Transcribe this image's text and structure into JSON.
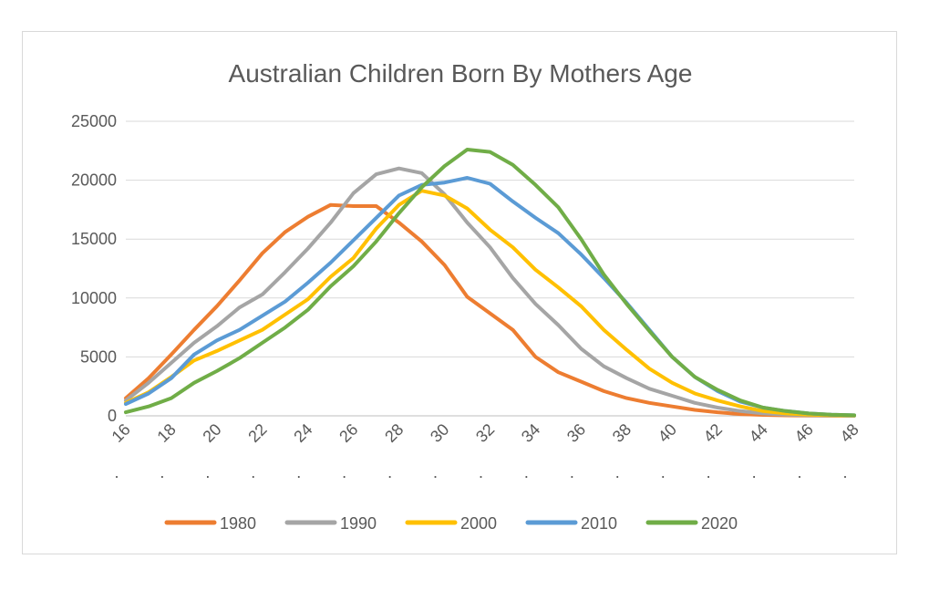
{
  "chart_data": {
    "type": "line",
    "title": "Australian Children Born By Mothers Age",
    "xlabel": "",
    "ylabel": "",
    "x": [
      16,
      17,
      18,
      19,
      20,
      21,
      22,
      23,
      24,
      25,
      26,
      27,
      28,
      29,
      30,
      31,
      32,
      33,
      34,
      35,
      36,
      37,
      38,
      39,
      40,
      41,
      42,
      43,
      44,
      45,
      46,
      47,
      48
    ],
    "x_tick_labels": [
      "16",
      "18",
      "20",
      "22",
      "24",
      "26",
      "28",
      "30",
      "32",
      "34",
      "36",
      "38",
      "40",
      "42",
      "44",
      "46",
      "48"
    ],
    "x_tick_values": [
      16,
      18,
      20,
      22,
      24,
      26,
      28,
      30,
      32,
      34,
      36,
      38,
      40,
      42,
      44,
      46,
      48
    ],
    "x_tick_suffix": ".",
    "ylim": [
      0,
      25000
    ],
    "y_ticks": [
      0,
      5000,
      10000,
      15000,
      20000,
      25000
    ],
    "y_tick_labels": [
      "0",
      "5000",
      "10000",
      "15000",
      "20000",
      "25000"
    ],
    "grid": true,
    "legend_position": "bottom",
    "series": [
      {
        "name": "1980",
        "color": "#ED7D31",
        "values": [
          1500,
          3200,
          5200,
          7300,
          9300,
          11500,
          13800,
          15600,
          16900,
          17900,
          17800,
          17800,
          16400,
          14800,
          12800,
          10100,
          8700,
          7300,
          5000,
          3700,
          2900,
          2100,
          1500,
          1100,
          800,
          500,
          300,
          150,
          80,
          40,
          20,
          10,
          5
        ]
      },
      {
        "name": "1990",
        "color": "#A5A5A5",
        "values": [
          1300,
          2800,
          4500,
          6200,
          7600,
          9200,
          10300,
          12200,
          14200,
          16400,
          18900,
          20500,
          21000,
          20600,
          18800,
          16400,
          14300,
          11700,
          9500,
          7700,
          5700,
          4200,
          3200,
          2300,
          1700,
          1100,
          700,
          400,
          200,
          100,
          50,
          20,
          10
        ]
      },
      {
        "name": "2000",
        "color": "#FFC000",
        "values": [
          1100,
          2000,
          3300,
          4700,
          5500,
          6400,
          7300,
          8600,
          9900,
          11800,
          13400,
          15900,
          17900,
          19100,
          18700,
          17600,
          15800,
          14300,
          12400,
          10900,
          9300,
          7300,
          5600,
          4000,
          2800,
          1900,
          1300,
          800,
          400,
          200,
          100,
          50,
          20
        ]
      },
      {
        "name": "2010",
        "color": "#5B9BD5",
        "values": [
          1000,
          1900,
          3200,
          5200,
          6400,
          7300,
          8500,
          9700,
          11300,
          13000,
          14900,
          16800,
          18700,
          19600,
          19800,
          20200,
          19700,
          18200,
          16800,
          15500,
          13700,
          11700,
          9600,
          7300,
          5000,
          3300,
          2100,
          1200,
          700,
          400,
          200,
          100,
          50
        ]
      },
      {
        "name": "2020",
        "color": "#70AD47",
        "values": [
          300,
          800,
          1500,
          2800,
          3800,
          4900,
          6200,
          7500,
          9000,
          11000,
          12700,
          14800,
          17200,
          19400,
          21200,
          22600,
          22400,
          21300,
          19600,
          17700,
          15000,
          12000,
          9500,
          7200,
          5000,
          3300,
          2200,
          1300,
          700,
          400,
          200,
          100,
          50
        ]
      }
    ]
  }
}
